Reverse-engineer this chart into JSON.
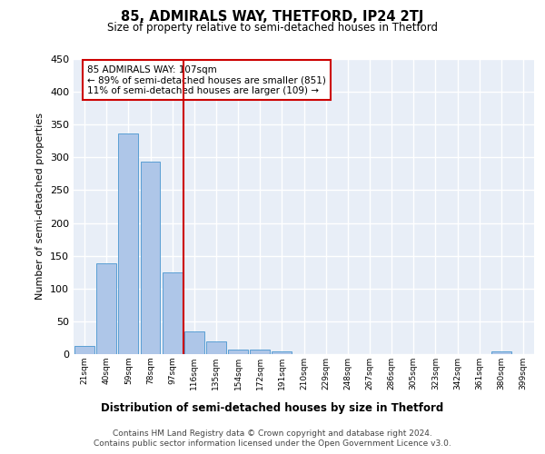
{
  "title": "85, ADMIRALS WAY, THETFORD, IP24 2TJ",
  "subtitle": "Size of property relative to semi-detached houses in Thetford",
  "xlabel": "Distribution of semi-detached houses by size in Thetford",
  "ylabel": "Number of semi-detached properties",
  "categories": [
    "21sqm",
    "40sqm",
    "59sqm",
    "78sqm",
    "97sqm",
    "116sqm",
    "135sqm",
    "154sqm",
    "172sqm",
    "191sqm",
    "210sqm",
    "229sqm",
    "248sqm",
    "267sqm",
    "286sqm",
    "305sqm",
    "323sqm",
    "342sqm",
    "361sqm",
    "380sqm",
    "399sqm"
  ],
  "values": [
    13,
    138,
    337,
    293,
    124,
    34,
    20,
    7,
    7,
    4,
    0,
    0,
    0,
    0,
    0,
    0,
    0,
    0,
    0,
    4,
    0
  ],
  "bar_color": "#aec6e8",
  "bar_edge_color": "#5a9fd4",
  "vline_color": "#cc0000",
  "annotation_text": "85 ADMIRALS WAY: 107sqm\n← 89% of semi-detached houses are smaller (851)\n11% of semi-detached houses are larger (109) →",
  "annotation_box_color": "#ffffff",
  "annotation_box_edge": "#cc0000",
  "ylim": [
    0,
    450
  ],
  "yticks": [
    0,
    50,
    100,
    150,
    200,
    250,
    300,
    350,
    400,
    450
  ],
  "background_color": "#e8eef7",
  "grid_color": "#ffffff",
  "footer_line1": "Contains HM Land Registry data © Crown copyright and database right 2024.",
  "footer_line2": "Contains public sector information licensed under the Open Government Licence v3.0."
}
